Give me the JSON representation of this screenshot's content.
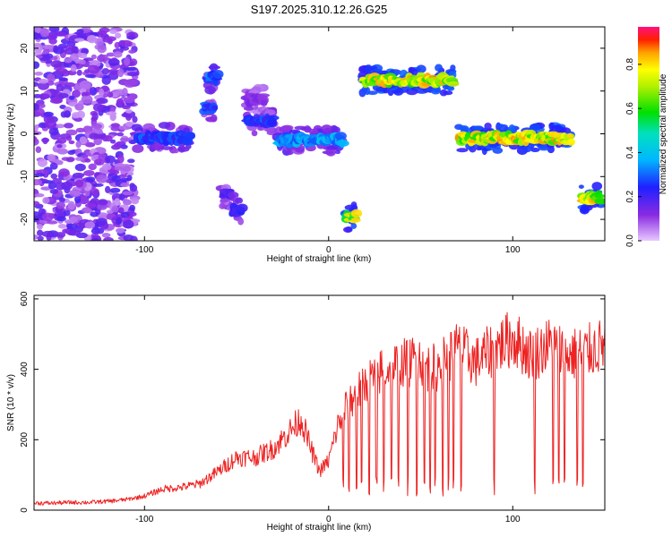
{
  "figure": {
    "title": "S197.2025.310.12.26.G25"
  },
  "colors": {
    "background": "#ffffff",
    "snr_line": "#ee2222",
    "axis": "#000000"
  },
  "chart_data": [
    {
      "type": "heatmap",
      "name": "spectrogram",
      "title": "S197.2025.310.12.26.G25",
      "xlabel": "Height of straight line (km)",
      "ylabel": "Frequency (Hz)",
      "xlim": [
        -160,
        150
      ],
      "ylim": [
        -25,
        25
      ],
      "x_ticks": [
        -100,
        0,
        100
      ],
      "y_ticks": [
        -20,
        -10,
        0,
        10,
        20
      ],
      "colorbar": {
        "label": "Normalized spectral amplitude",
        "range": [
          0,
          0.97
        ],
        "ticks": [
          0.0,
          0.2,
          0.4,
          0.6,
          0.8
        ],
        "tick_labels": [
          "0.0",
          "0.2",
          "0.4",
          "0.6",
          "0.8"
        ],
        "colormap": "rainbow (magenta → blue → cyan → green → yellow → red)"
      },
      "features": [
        {
          "x_range": [
            -160,
            -105
          ],
          "freq": 0,
          "freq_spread": 25,
          "amplitude": 0.1,
          "note": "broadband noise"
        },
        {
          "x_range": [
            -105,
            -75
          ],
          "freq": -1,
          "amplitude": 0.3
        },
        {
          "x": -63,
          "freq": 13,
          "amplitude": 0.35
        },
        {
          "x": -65,
          "freq": 6,
          "amplitude": 0.3
        },
        {
          "x": -55,
          "freq": -14,
          "amplitude": 0.2
        },
        {
          "x": -50,
          "freq": -18,
          "amplitude": 0.25
        },
        {
          "x_range": [
            -45,
            -35
          ],
          "freq": 8,
          "amplitude": 0.15
        },
        {
          "x_range": [
            -45,
            -30
          ],
          "freq": 3,
          "amplitude": 0.3
        },
        {
          "x_range": [
            -28,
            8
          ],
          "freq": -1.5,
          "amplitude": 0.4
        },
        {
          "x": 12,
          "freq": -19.5,
          "amplitude": 0.8
        },
        {
          "x_range": [
            18,
            68
          ],
          "freq": 12.5,
          "amplitude": 0.85
        },
        {
          "x_range": [
            70,
            132
          ],
          "freq": -1,
          "amplitude": 0.85
        },
        {
          "x_range": [
            137,
            148
          ],
          "freq": -15,
          "amplitude": 0.85
        }
      ]
    },
    {
      "type": "line",
      "name": "snr",
      "xlabel": "Height of straight line (km)",
      "ylabel": "SNR (10 * v/v)",
      "xlim": [
        -160,
        150
      ],
      "ylim": [
        0,
        610
      ],
      "x_ticks": [
        -100,
        0,
        100
      ],
      "y_ticks": [
        0,
        200,
        400,
        600
      ],
      "series": [
        {
          "name": "SNR",
          "x": [
            -160,
            -150,
            -140,
            -130,
            -120,
            -110,
            -100,
            -90,
            -80,
            -70,
            -60,
            -50,
            -40,
            -30,
            -20,
            -15,
            -10,
            -5,
            0,
            5,
            10,
            20,
            30,
            40,
            50,
            55,
            60,
            70,
            80,
            90,
            100,
            110,
            120,
            130,
            140,
            150
          ],
          "values": [
            20,
            20,
            22,
            22,
            25,
            30,
            40,
            60,
            65,
            75,
            110,
            150,
            150,
            175,
            230,
            260,
            180,
            110,
            140,
            240,
            300,
            360,
            400,
            415,
            430,
            400,
            410,
            460,
            420,
            460,
            490,
            440,
            470,
            440,
            450,
            470
          ]
        }
      ],
      "dropouts": [
        8,
        11,
        15,
        18,
        22,
        26,
        30,
        34,
        38,
        43,
        48,
        52,
        55,
        58,
        62,
        65,
        68,
        72,
        90,
        112,
        122,
        125,
        128,
        135,
        138
      ]
    }
  ]
}
